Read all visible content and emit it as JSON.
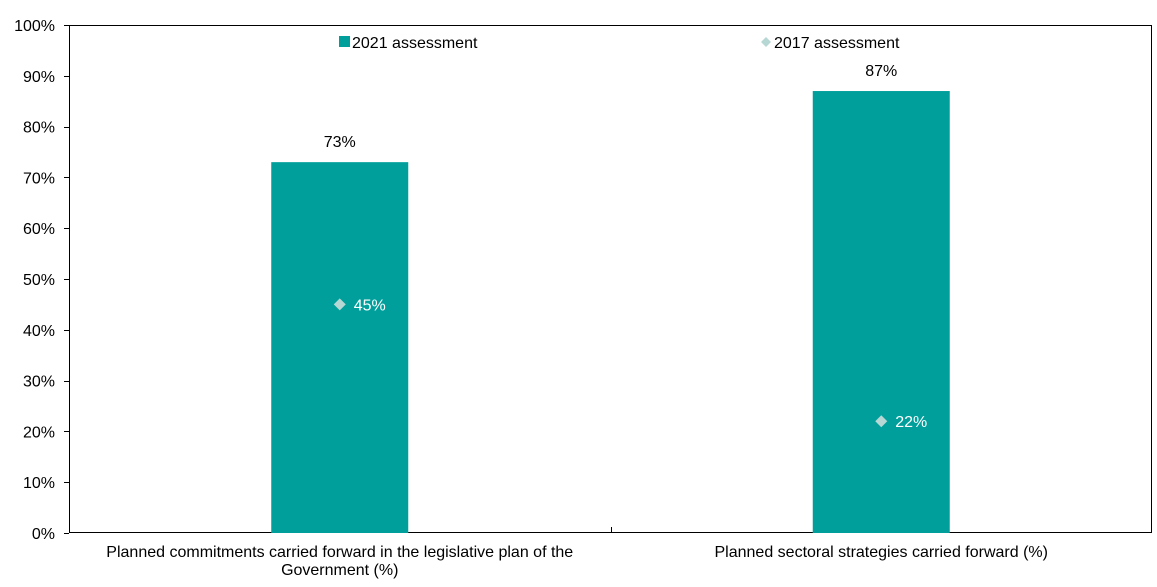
{
  "chart_data": {
    "type": "bar",
    "categories": [
      "Planned commitments carried forward in the legislative plan of the Government (%)",
      "Planned sectoral strategies carried forward (%)"
    ],
    "series": [
      {
        "name": "2021 assessment",
        "values": [
          73,
          87
        ],
        "labels": [
          "73%",
          "87%"
        ],
        "color": "#009f9b",
        "marker": "bar"
      },
      {
        "name": "2017 assessment",
        "values": [
          45,
          22
        ],
        "labels": [
          "45%",
          "22%"
        ],
        "color": "#b7d7d4",
        "marker": "diamond"
      }
    ],
    "ylim": [
      0,
      100
    ],
    "yticks": [
      0,
      10,
      20,
      30,
      40,
      50,
      60,
      70,
      80,
      90,
      100
    ],
    "ytick_labels": [
      "0%",
      "10%",
      "20%",
      "30%",
      "40%",
      "50%",
      "60%",
      "70%",
      "80%",
      "90%",
      "100%"
    ],
    "grid": false,
    "legend_position": "top"
  }
}
